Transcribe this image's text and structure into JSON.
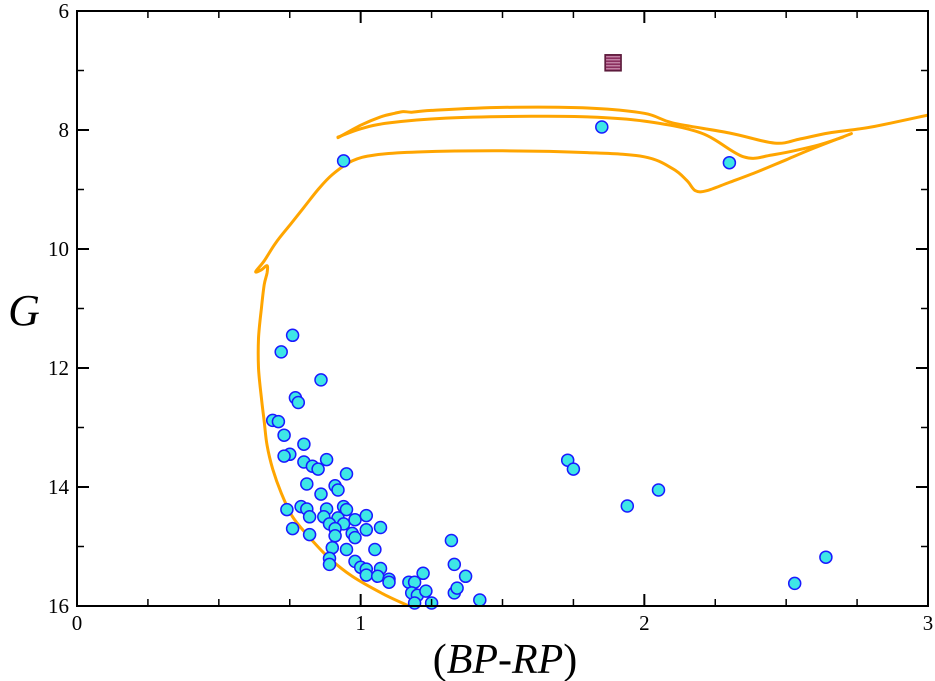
{
  "chart_data": {
    "type": "scatter",
    "title": "",
    "xlabel": "(BP-RP)",
    "xlabel_parts": {
      "open": "(",
      "main": "BP-RP",
      "close": ")"
    },
    "ylabel": "G",
    "xlim": [
      0,
      3
    ],
    "ylim": [
      16,
      6
    ],
    "y_inverted": true,
    "x_major_ticks": [
      0,
      1,
      2,
      3
    ],
    "x_tick_labels": [
      "0",
      "1",
      "2",
      "3"
    ],
    "x_minor_ticks": [
      0.25,
      0.5,
      0.75,
      1.25,
      1.5,
      1.75,
      2.25,
      2.5,
      2.75
    ],
    "y_major_ticks": [
      6,
      8,
      10,
      12,
      14,
      16
    ],
    "y_tick_labels": [
      "6",
      "8",
      "10",
      "12",
      "14",
      "16"
    ],
    "y_minor_ticks": [
      7,
      9,
      11,
      13,
      15
    ],
    "grid": false,
    "colors": {
      "stars_fill": "#3ee6e6",
      "stars_edge": "#1a1aff",
      "isochrone": "#ffa500",
      "special_fill": "#8b2f5f",
      "special_edge": "#5a1a3a",
      "axis": "#000000"
    },
    "series": [
      {
        "name": "stars",
        "marker": "circle",
        "points": [
          [
            0.76,
            11.45
          ],
          [
            0.72,
            11.73
          ],
          [
            0.86,
            12.2
          ],
          [
            0.77,
            12.5
          ],
          [
            0.78,
            12.58
          ],
          [
            0.69,
            12.88
          ],
          [
            0.71,
            12.9
          ],
          [
            0.73,
            13.13
          ],
          [
            0.8,
            13.28
          ],
          [
            0.75,
            13.45
          ],
          [
            0.73,
            13.48
          ],
          [
            0.88,
            13.54
          ],
          [
            0.8,
            13.58
          ],
          [
            0.83,
            13.65
          ],
          [
            0.85,
            13.7
          ],
          [
            0.95,
            13.78
          ],
          [
            0.81,
            13.95
          ],
          [
            0.91,
            13.98
          ],
          [
            0.92,
            14.05
          ],
          [
            0.86,
            14.12
          ],
          [
            0.74,
            14.38
          ],
          [
            0.79,
            14.33
          ],
          [
            0.81,
            14.37
          ],
          [
            0.88,
            14.37
          ],
          [
            0.94,
            14.33
          ],
          [
            0.95,
            14.38
          ],
          [
            0.82,
            14.5
          ],
          [
            0.87,
            14.5
          ],
          [
            0.92,
            14.52
          ],
          [
            0.98,
            14.55
          ],
          [
            1.02,
            14.48
          ],
          [
            0.89,
            14.62
          ],
          [
            0.94,
            14.62
          ],
          [
            0.76,
            14.7
          ],
          [
            0.91,
            14.7
          ],
          [
            1.02,
            14.72
          ],
          [
            1.07,
            14.68
          ],
          [
            0.97,
            14.78
          ],
          [
            0.82,
            14.8
          ],
          [
            0.91,
            14.82
          ],
          [
            0.98,
            14.85
          ],
          [
            0.9,
            15.02
          ],
          [
            0.95,
            15.05
          ],
          [
            1.05,
            15.05
          ],
          [
            0.89,
            15.2
          ],
          [
            0.98,
            15.25
          ],
          [
            0.89,
            15.3
          ],
          [
            1.0,
            15.35
          ],
          [
            1.02,
            15.38
          ],
          [
            1.07,
            15.37
          ],
          [
            1.02,
            15.48
          ],
          [
            1.06,
            15.5
          ],
          [
            1.1,
            15.55
          ],
          [
            1.1,
            15.6
          ],
          [
            1.17,
            15.6
          ],
          [
            1.19,
            15.6
          ],
          [
            1.18,
            15.78
          ],
          [
            1.2,
            15.82
          ],
          [
            1.19,
            15.95
          ],
          [
            1.25,
            15.95
          ],
          [
            1.22,
            15.45
          ],
          [
            1.23,
            15.75
          ],
          [
            1.32,
            14.9
          ],
          [
            1.33,
            15.3
          ],
          [
            1.37,
            15.5
          ],
          [
            1.33,
            15.78
          ],
          [
            1.34,
            15.7
          ],
          [
            1.42,
            15.9
          ],
          [
            1.73,
            13.55
          ],
          [
            1.75,
            13.7
          ],
          [
            1.94,
            14.32
          ],
          [
            2.05,
            14.05
          ],
          [
            2.53,
            15.62
          ],
          [
            2.64,
            15.18
          ],
          [
            0.94,
            8.52
          ],
          [
            1.85,
            7.95
          ],
          [
            2.3,
            8.55
          ]
        ]
      },
      {
        "name": "special-star",
        "marker": "square",
        "points": [
          [
            1.89,
            6.87
          ]
        ]
      }
    ],
    "isochrone_branches": [
      {
        "name": "main-sequence-to-giant-branch",
        "points": [
          [
            1.17,
            16.0
          ],
          [
            1.08,
            15.8
          ],
          [
            0.97,
            15.5
          ],
          [
            0.89,
            15.2
          ],
          [
            0.82,
            14.85
          ],
          [
            0.76,
            14.5
          ],
          [
            0.72,
            14.1
          ],
          [
            0.69,
            13.7
          ],
          [
            0.67,
            13.3
          ],
          [
            0.66,
            12.9
          ],
          [
            0.65,
            12.5
          ],
          [
            0.64,
            12.0
          ],
          [
            0.64,
            11.5
          ],
          [
            0.65,
            11.0
          ],
          [
            0.66,
            10.6
          ],
          [
            0.67,
            10.4
          ],
          [
            0.67,
            10.28
          ],
          [
            0.65,
            10.35
          ],
          [
            0.63,
            10.38
          ],
          [
            0.66,
            10.2
          ],
          [
            0.7,
            9.9
          ],
          [
            0.75,
            9.6
          ],
          [
            0.8,
            9.3
          ],
          [
            0.85,
            9.0
          ],
          [
            0.9,
            8.75
          ],
          [
            0.97,
            8.52
          ],
          [
            1.05,
            8.42
          ],
          [
            1.2,
            8.37
          ],
          [
            1.5,
            8.35
          ],
          [
            1.8,
            8.38
          ],
          [
            2.0,
            8.45
          ],
          [
            2.1,
            8.65
          ],
          [
            2.15,
            8.85
          ],
          [
            2.18,
            9.02
          ],
          [
            2.22,
            9.02
          ],
          [
            2.3,
            8.88
          ],
          [
            2.4,
            8.7
          ],
          [
            2.5,
            8.5
          ],
          [
            2.6,
            8.3
          ],
          [
            2.73,
            8.06
          ]
        ]
      },
      {
        "name": "loop-and-agb",
        "points": [
          [
            0.92,
            8.13
          ],
          [
            1.0,
            7.92
          ],
          [
            1.07,
            7.78
          ],
          [
            1.12,
            7.72
          ],
          [
            1.15,
            7.69
          ],
          [
            1.18,
            7.7
          ],
          [
            1.25,
            7.67
          ],
          [
            1.5,
            7.62
          ],
          [
            1.8,
            7.63
          ],
          [
            2.0,
            7.72
          ],
          [
            2.1,
            7.88
          ],
          [
            2.3,
            8.05
          ],
          [
            2.46,
            8.22
          ],
          [
            2.55,
            8.15
          ],
          [
            2.65,
            8.05
          ],
          [
            2.8,
            7.95
          ],
          [
            3.0,
            7.75
          ]
        ]
      },
      {
        "name": "blue-loop-return",
        "points": [
          [
            0.92,
            8.12
          ],
          [
            1.0,
            7.98
          ],
          [
            1.1,
            7.88
          ],
          [
            1.3,
            7.8
          ],
          [
            1.6,
            7.77
          ],
          [
            1.8,
            7.78
          ],
          [
            2.0,
            7.85
          ],
          [
            2.2,
            8.05
          ],
          [
            2.35,
            8.45
          ],
          [
            2.45,
            8.42
          ],
          [
            2.6,
            8.27
          ],
          [
            2.7,
            8.12
          ]
        ]
      }
    ]
  }
}
